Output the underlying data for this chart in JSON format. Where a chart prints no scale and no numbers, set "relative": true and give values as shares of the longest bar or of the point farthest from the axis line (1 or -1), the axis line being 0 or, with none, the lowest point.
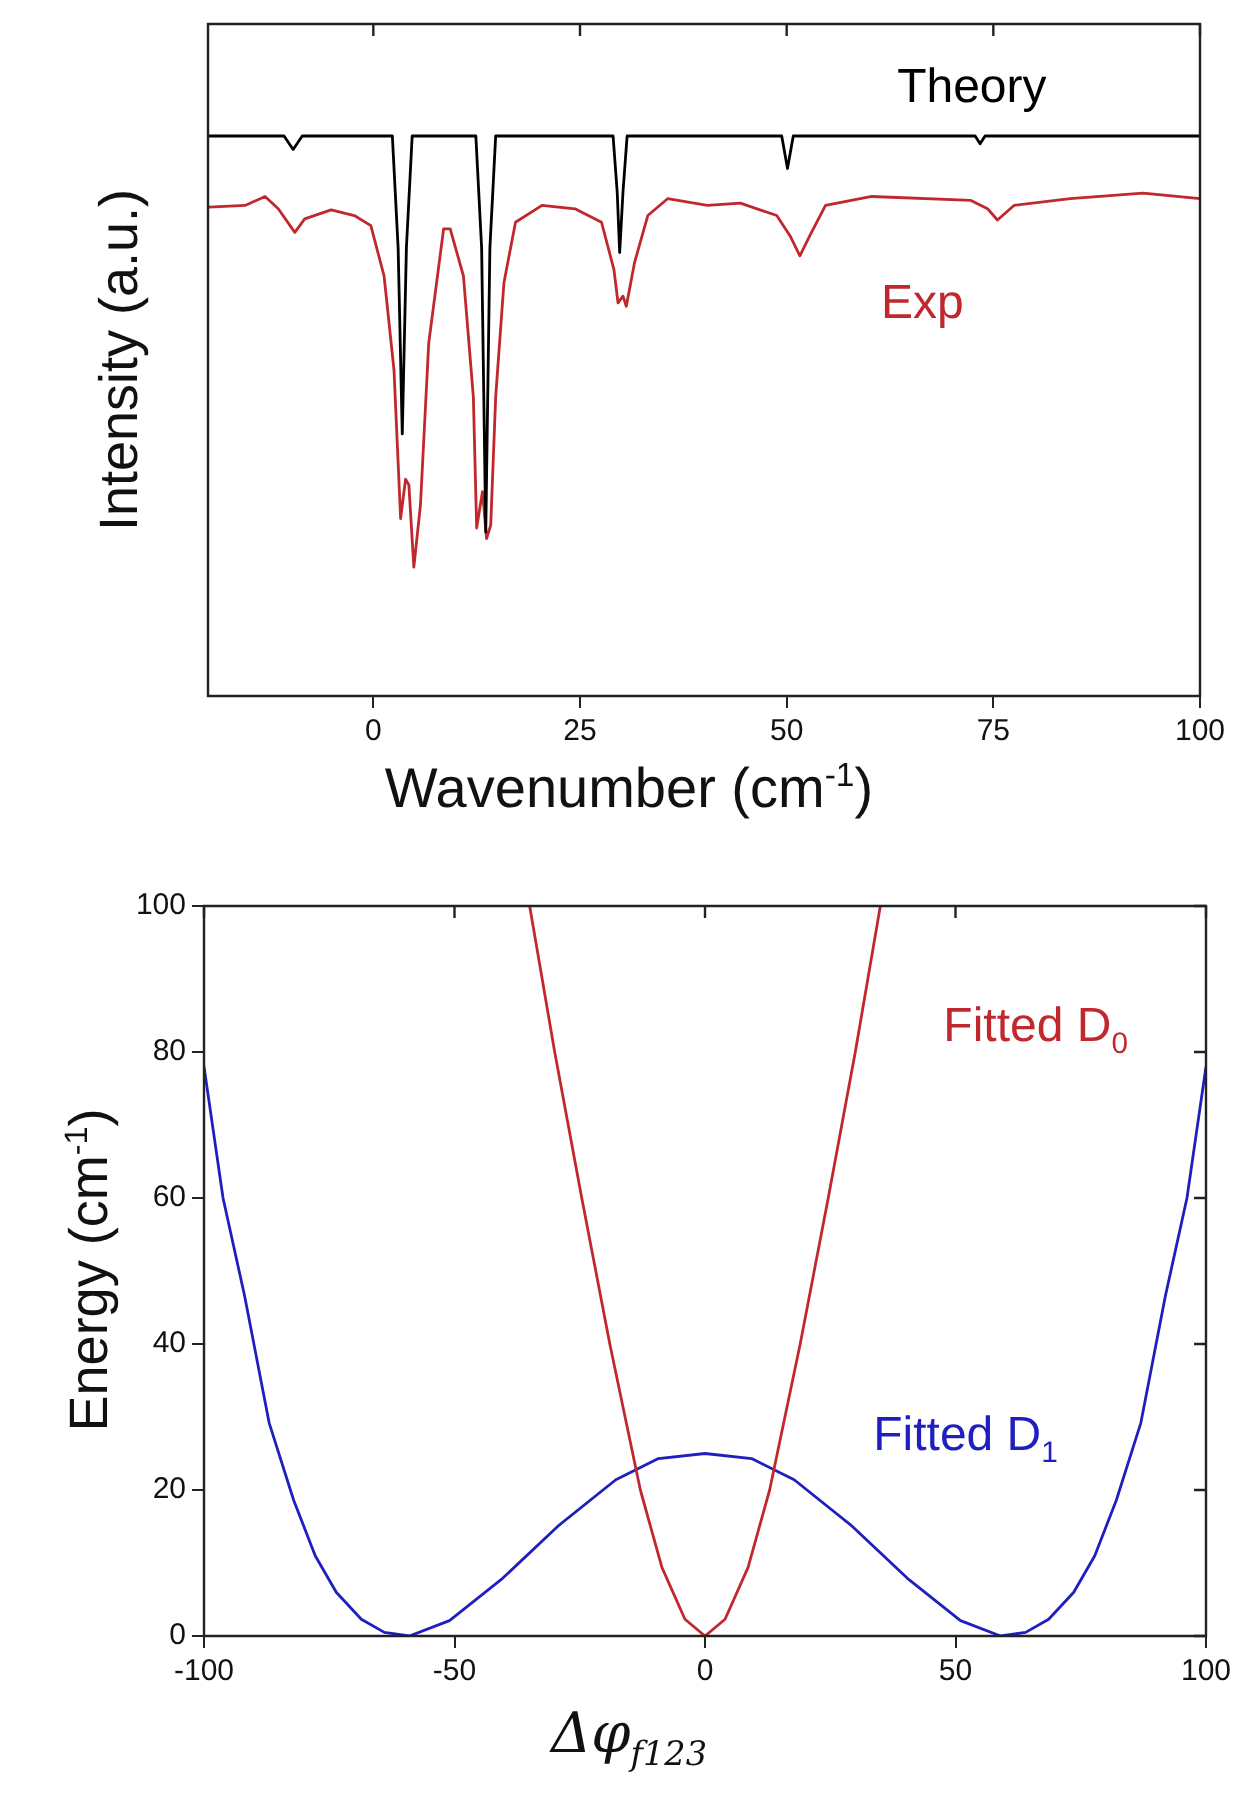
{
  "chart_data": [
    {
      "type": "line",
      "xlabel": "Wavenumber (cm$^{-1}$)",
      "ylabel": "Intensity (a.u.)",
      "relative": true,
      "xlim": [
        -20,
        100
      ],
      "xticks": [
        0,
        25,
        50,
        75,
        100
      ],
      "tick_labels": "x",
      "grid": false,
      "legend": false,
      "marker": "none",
      "line_style": "solid",
      "series": [
        {
          "name": "Theory",
          "color": "#000000",
          "x": [
            -20,
            -10.8,
            -9.7,
            -8.6,
            2.3,
            3.0,
            3.5,
            4.0,
            4.7,
            12.4,
            13.1,
            13.6,
            14.1,
            14.8,
            29.0,
            29.5,
            29.8,
            30.2,
            30.7,
            49.4,
            50.1,
            50.8,
            72.8,
            73.4,
            74.0,
            100
          ],
          "values": [
            1,
            1,
            0.976,
            1,
            1,
            0.8,
            0.468,
            0.8,
            1,
            1,
            0.8,
            0.293,
            0.8,
            1,
            1,
            0.9,
            0.792,
            0.9,
            1,
            1,
            0.942,
            1,
            1,
            0.986,
            1,
            1
          ]
        },
        {
          "name": "Exp",
          "color": "#c0282d",
          "x": [
            -19.9,
            -15.5,
            -13.1,
            -11.5,
            -9.5,
            -8.3,
            -5.1,
            -2.3,
            -0.3,
            1.3,
            2.5,
            3.3,
            3.9,
            4.3,
            4.9,
            5.7,
            6.7,
            8.5,
            9.3,
            10.9,
            12.1,
            12.5,
            13.2,
            13.7,
            14.2,
            14.8,
            15.8,
            17.2,
            20.4,
            24.4,
            27.6,
            29.1,
            29.6,
            30.2,
            30.6,
            31.6,
            33.2,
            35.6,
            40.4,
            44.4,
            48.8,
            50.4,
            51.6,
            52.8,
            54.7,
            60.3,
            72.3,
            74.3,
            75.5,
            77.5,
            84.3,
            93.1,
            100
          ],
          "values": [
            0.873,
            0.876,
            0.892,
            0.87,
            0.828,
            0.852,
            0.868,
            0.858,
            0.84,
            0.75,
            0.582,
            0.317,
            0.387,
            0.377,
            0.23,
            0.341,
            0.63,
            0.834,
            0.834,
            0.75,
            0.534,
            0.3,
            0.365,
            0.281,
            0.305,
            0.534,
            0.738,
            0.846,
            0.876,
            0.87,
            0.846,
            0.762,
            0.702,
            0.714,
            0.696,
            0.774,
            0.858,
            0.888,
            0.876,
            0.88,
            0.858,
            0.822,
            0.786,
            0.822,
            0.876,
            0.892,
            0.885,
            0.87,
            0.85,
            0.876,
            0.888,
            0.898,
            0.888
          ]
        }
      ]
    },
    {
      "type": "line",
      "xlabel": "Δφ$_{f123}$",
      "ylabel": "Energy (cm$^{-1}$)",
      "xlim": [
        -100,
        100
      ],
      "xticks": [
        -100,
        -50,
        0,
        50,
        100
      ],
      "ylim": [
        0,
        100
      ],
      "yticks": [
        0,
        20,
        40,
        60,
        80,
        100
      ],
      "grid": false,
      "legend": false,
      "marker": "none",
      "line_style": "solid",
      "series": [
        {
          "name": "Fitted D$_{0}$",
          "color": "#c0282d",
          "x": [
            -35,
            -30,
            -24.6,
            -19,
            -12.9,
            -8.6,
            -4,
            0,
            4,
            8.6,
            12.9,
            19,
            24.6,
            30,
            35
          ],
          "values": [
            100,
            80,
            60,
            40,
            20,
            9.4,
            2.3,
            0,
            2.3,
            9.4,
            20,
            40,
            60,
            80,
            100
          ]
        },
        {
          "name": "Fitted D$_{1}$",
          "color": "#1f1fbf",
          "x": [
            -100,
            -96.2,
            -91.9,
            -87,
            -82.1,
            -77.8,
            -73.6,
            -68.6,
            -64,
            -59,
            -51,
            -40.4,
            -29.1,
            -17.8,
            -9.3,
            0,
            9.3,
            17.8,
            29.1,
            40.4,
            51,
            59,
            64,
            68.6,
            73.6,
            77.8,
            82.1,
            87,
            91.9,
            96.2,
            100
          ],
          "values": [
            78,
            60,
            46.6,
            29.2,
            18.6,
            11,
            6,
            2.3,
            0.5,
            0,
            2.1,
            7.9,
            15.2,
            21.4,
            24.3,
            25,
            24.3,
            21.4,
            15.2,
            7.9,
            2.1,
            0,
            0.5,
            2.3,
            6,
            11,
            18.6,
            29.2,
            46.6,
            60,
            78
          ]
        }
      ]
    }
  ]
}
